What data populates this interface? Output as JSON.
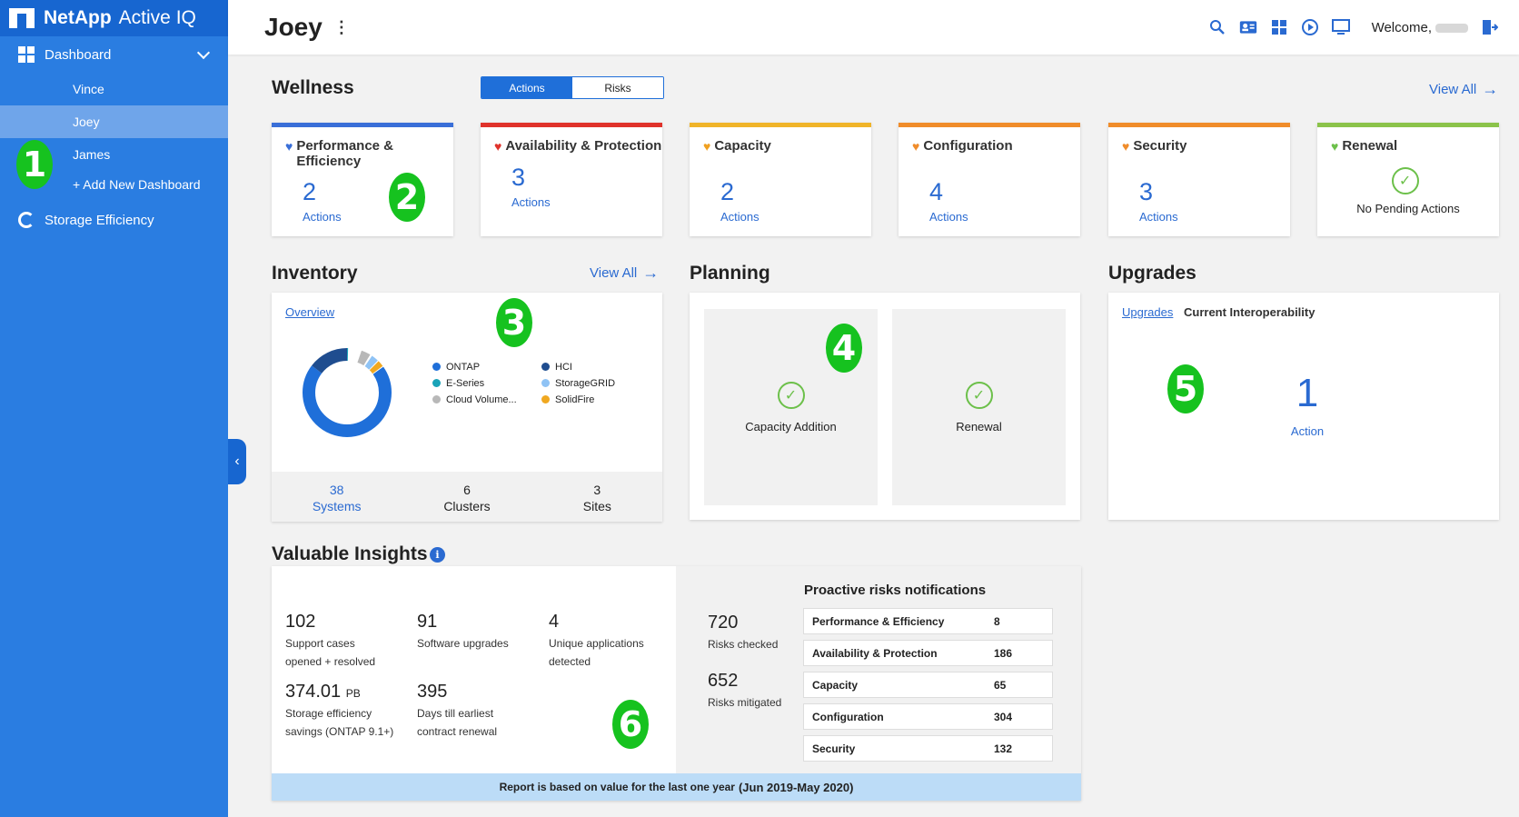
{
  "brand": {
    "name": "NetApp",
    "product": "Active IQ"
  },
  "sidebar": {
    "dashboard_label": "Dashboard",
    "dashboards": [
      "Vince",
      "Joey",
      "James"
    ],
    "active_dashboard": "Joey",
    "add_label": "+ Add New Dashboard",
    "storage_label": "Storage Efficiency"
  },
  "header": {
    "title": "Joey",
    "menu_glyph": "⋮",
    "welcome": "Welcome,"
  },
  "markers": [
    "1",
    "2",
    "3",
    "4",
    "5",
    "6"
  ],
  "wellness": {
    "title": "Wellness",
    "tabs": [
      "Actions",
      "Risks"
    ],
    "view_all": "View All",
    "cards": [
      {
        "title": "Performance & Efficiency",
        "count": "2",
        "label": "Actions",
        "color": "#3a6fd8",
        "heart_color": "#3a6fd8"
      },
      {
        "title": "Availability & Protection",
        "count": "3",
        "label": "Actions",
        "color": "#e0322b",
        "heart_color": "#e0322b"
      },
      {
        "title": "Capacity",
        "count": "2",
        "label": "Actions",
        "color": "#f0b429",
        "heart_color": "#f0a020"
      },
      {
        "title": "Configuration",
        "count": "4",
        "label": "Actions",
        "color": "#f08c2a",
        "heart_color": "#f08c2a"
      },
      {
        "title": "Security",
        "count": "3",
        "label": "Actions",
        "color": "#f08c2a",
        "heart_color": "#f08c2a"
      },
      {
        "title": "Renewal",
        "none_label": "No Pending Actions",
        "color": "#8bc34a",
        "heart_color": "#6cc04a"
      }
    ]
  },
  "inventory": {
    "title": "Inventory",
    "view_all": "View All",
    "tab": "Overview",
    "legend": [
      {
        "name": "ONTAP",
        "color": "#1f6fd9"
      },
      {
        "name": "HCI",
        "color": "#1f4d8f"
      },
      {
        "name": "E-Series",
        "color": "#1aa3b8"
      },
      {
        "name": "StorageGRID",
        "color": "#8fc3f5"
      },
      {
        "name": "Cloud Volume...",
        "color": "#b8b8b8"
      },
      {
        "name": "SolidFire",
        "color": "#f0a820"
      }
    ],
    "stats": [
      {
        "value": "38",
        "label": "Systems"
      },
      {
        "value": "6",
        "label": "Clusters"
      },
      {
        "value": "3",
        "label": "Sites"
      }
    ]
  },
  "planning": {
    "title": "Planning",
    "items": [
      "Capacity Addition",
      "Renewal"
    ]
  },
  "upgrades": {
    "title": "Upgrades",
    "tabs": [
      "Upgrades",
      "Current Interoperability"
    ],
    "count": "1",
    "label": "Action"
  },
  "insights": {
    "title": "Valuable Insights",
    "info_glyph": "i",
    "stats": [
      {
        "value": "102",
        "label1": "Support cases",
        "label2": "opened + resolved"
      },
      {
        "value": "91",
        "label1": "Software upgrades",
        "label2": ""
      },
      {
        "value": "4",
        "label1": "Unique applications",
        "label2": "detected"
      },
      {
        "value": "374.01",
        "unit": "PB",
        "label1": "Storage efficiency",
        "label2": "savings (ONTAP 9.1+)"
      },
      {
        "value": "395",
        "label1": "Days till earliest",
        "label2": "contract renewal"
      }
    ],
    "risks_checked": {
      "value": "720",
      "label": "Risks checked"
    },
    "risks_mitigated": {
      "value": "652",
      "label": "Risks mitigated"
    },
    "notifications_title": "Proactive risks notifications",
    "notifications": [
      {
        "name": "Performance & Efficiency",
        "count": "8"
      },
      {
        "name": "Availability & Protection",
        "count": "186"
      },
      {
        "name": "Capacity",
        "count": "65"
      },
      {
        "name": "Configuration",
        "count": "304"
      },
      {
        "name": "Security",
        "count": "132"
      }
    ],
    "footer_text": "Report is based on value for the last one year",
    "footer_period": "(Jun 2019-May 2020)"
  }
}
